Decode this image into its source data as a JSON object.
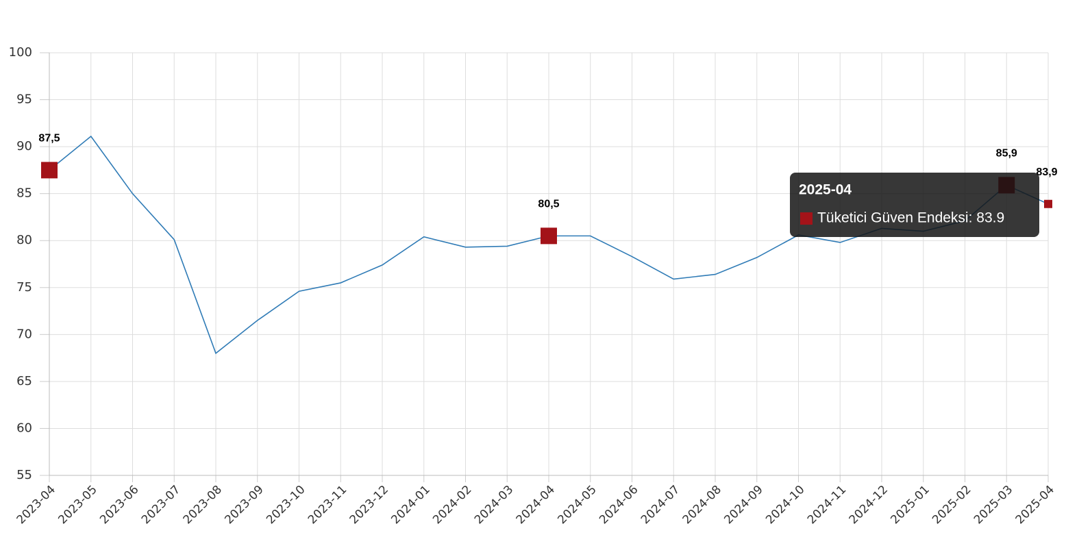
{
  "chart_data": {
    "type": "line",
    "categories": [
      "2023-04",
      "2023-05",
      "2023-06",
      "2023-07",
      "2023-08",
      "2023-09",
      "2023-10",
      "2023-11",
      "2023-12",
      "2024-01",
      "2024-02",
      "2024-03",
      "2024-04",
      "2024-05",
      "2024-06",
      "2024-07",
      "2024-08",
      "2024-09",
      "2024-10",
      "2024-11",
      "2024-12",
      "2025-01",
      "2025-02",
      "2025-03",
      "2025-04"
    ],
    "series": [
      {
        "name": "Tüketici Güven Endeksi",
        "color": "#2f7bb6",
        "values": [
          87.5,
          91.1,
          85.0,
          80.1,
          68.0,
          71.5,
          74.6,
          75.5,
          77.4,
          80.4,
          79.3,
          79.4,
          80.5,
          80.5,
          78.3,
          75.9,
          76.4,
          78.2,
          80.6,
          79.8,
          81.3,
          81.0,
          82.1,
          85.9,
          83.9
        ],
        "value_labels": [
          "87,5",
          null,
          null,
          null,
          null,
          null,
          null,
          null,
          null,
          null,
          null,
          null,
          "80,5",
          null,
          null,
          null,
          null,
          null,
          null,
          null,
          null,
          null,
          null,
          "85,9",
          "83,9"
        ],
        "marker_color": "#a31319"
      }
    ],
    "ylim": [
      55,
      100
    ],
    "yticks": [
      55,
      60,
      65,
      70,
      75,
      80,
      85,
      90,
      95,
      100
    ],
    "grid": true,
    "tooltip": {
      "title": "2025-04",
      "text": "Tüketici Güven Endeksi: 83.9"
    }
  }
}
